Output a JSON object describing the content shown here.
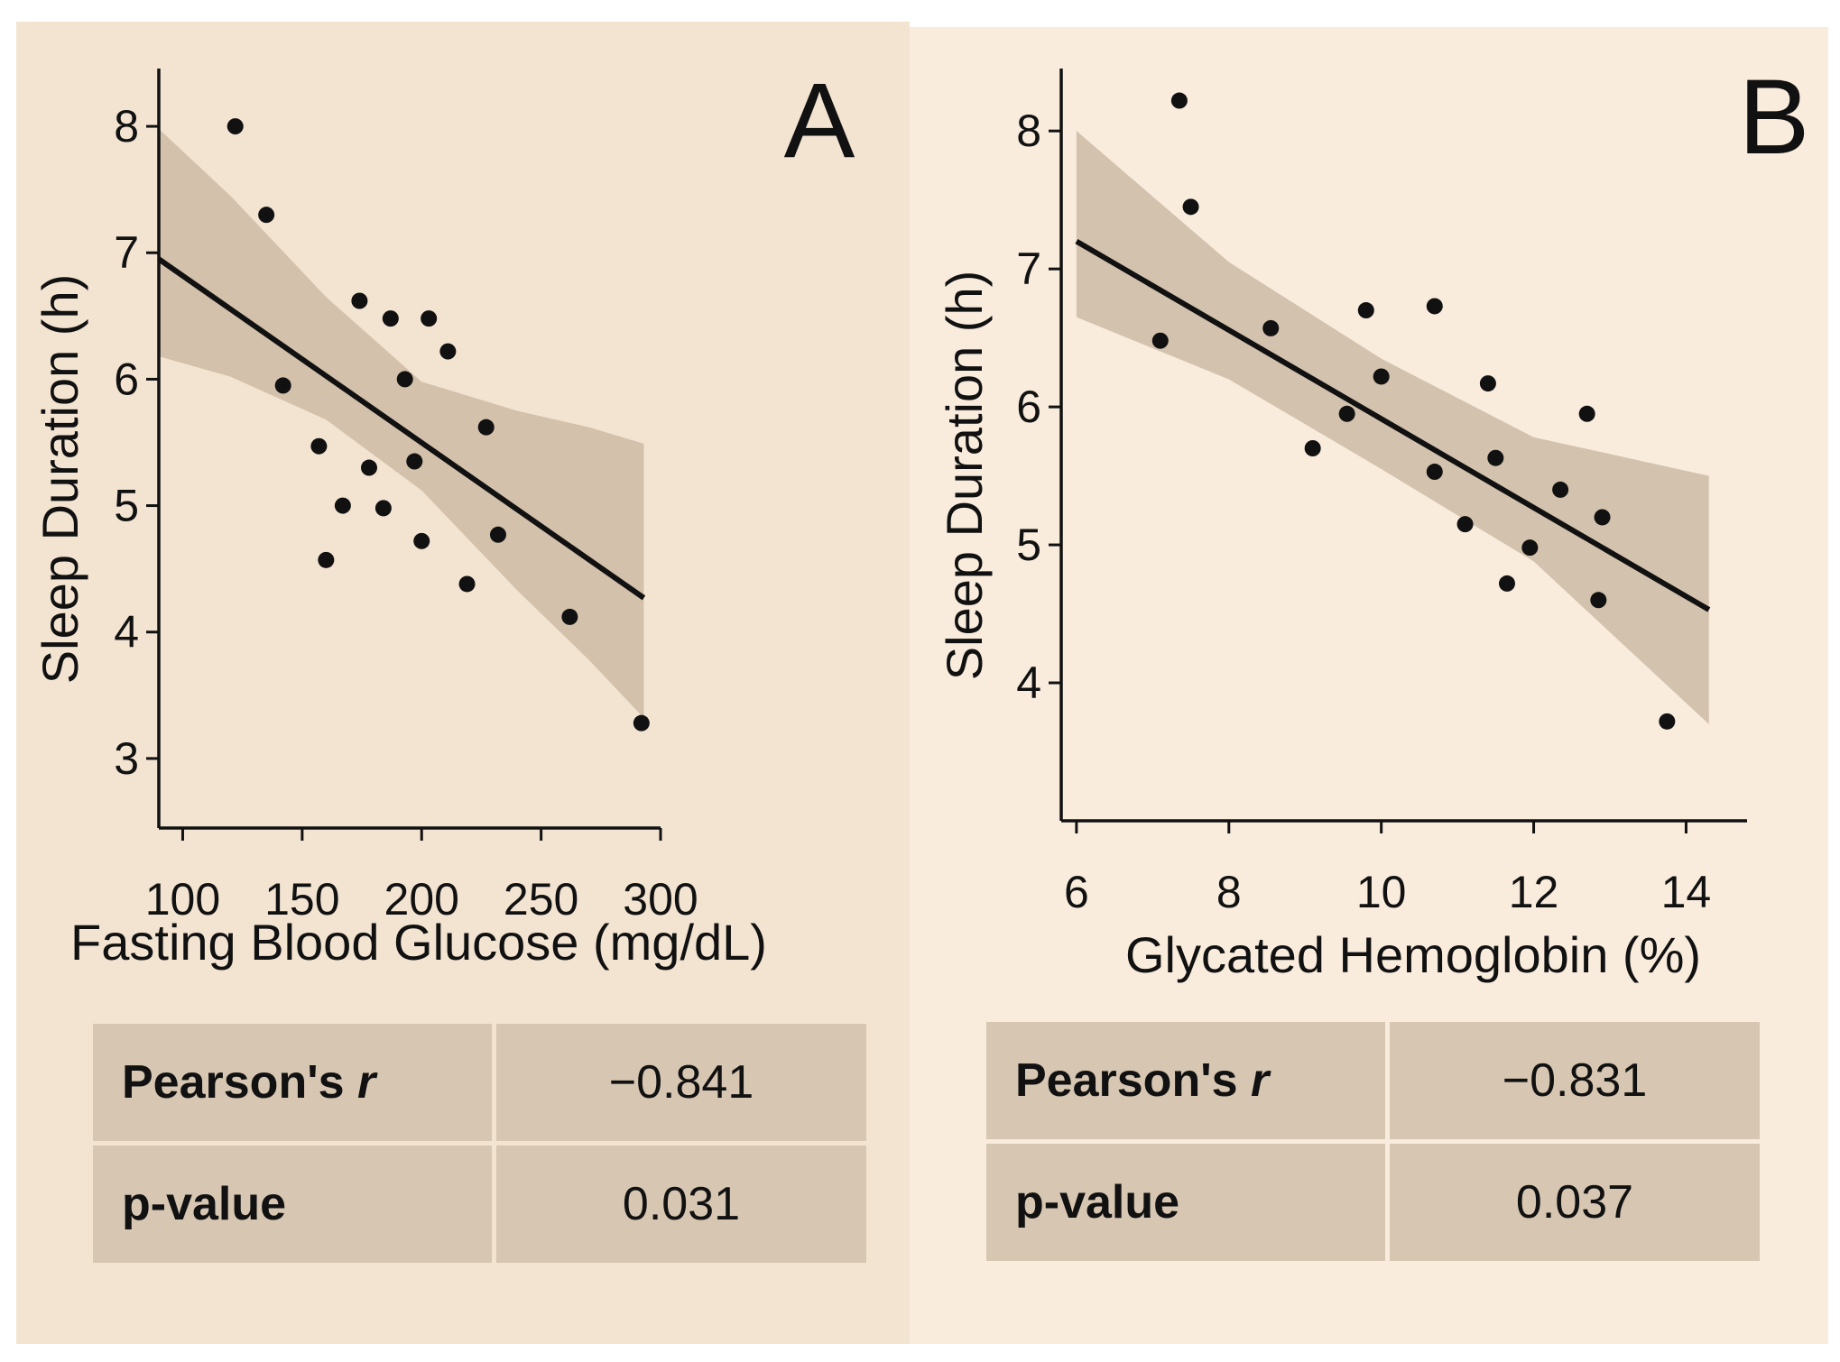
{
  "chart_data": [
    {
      "type": "scatter",
      "panel_label": "A",
      "xlabel": "Fasting Blood Glucose (mg/dL)",
      "ylabel": "Sleep Duration (h)",
      "xlim": [
        90,
        300
      ],
      "ylim": [
        2.45,
        8.4
      ],
      "xticks": [
        100,
        150,
        200,
        250,
        300
      ],
      "yticks": [
        3,
        4,
        5,
        6,
        7,
        8
      ],
      "points": [
        {
          "x": 122,
          "y": 8.0
        },
        {
          "x": 135,
          "y": 7.3
        },
        {
          "x": 142,
          "y": 5.95
        },
        {
          "x": 157,
          "y": 5.47
        },
        {
          "x": 160,
          "y": 4.57
        },
        {
          "x": 167,
          "y": 5.0
        },
        {
          "x": 174,
          "y": 6.62
        },
        {
          "x": 178,
          "y": 5.3
        },
        {
          "x": 184,
          "y": 4.98
        },
        {
          "x": 187,
          "y": 6.48
        },
        {
          "x": 193,
          "y": 6.0
        },
        {
          "x": 197,
          "y": 5.35
        },
        {
          "x": 200,
          "y": 4.72
        },
        {
          "x": 203,
          "y": 6.48
        },
        {
          "x": 211,
          "y": 6.22
        },
        {
          "x": 219,
          "y": 4.38
        },
        {
          "x": 227,
          "y": 5.62
        },
        {
          "x": 232,
          "y": 4.77
        },
        {
          "x": 262,
          "y": 4.12
        },
        {
          "x": 292,
          "y": 3.28
        }
      ],
      "fit": {
        "x": [
          90,
          293
        ],
        "y": [
          6.95,
          4.27
        ]
      },
      "ci_band": {
        "x": [
          90,
          120,
          160,
          200,
          240,
          270,
          293
        ],
        "upper": [
          7.98,
          7.45,
          6.65,
          5.98,
          5.75,
          5.62,
          5.49
        ],
        "lower": [
          6.18,
          6.02,
          5.68,
          5.12,
          4.33,
          3.78,
          3.32
        ]
      },
      "stats": {
        "r_label": "Pearson's",
        "r_symbol": "r",
        "r_value": "−0.841",
        "p_label": "p-value",
        "p_value": "0.031"
      }
    },
    {
      "type": "scatter",
      "panel_label": "B",
      "xlabel": "Glycated Hemoglobin (%)",
      "ylabel": "Sleep Duration (h)",
      "xlim": [
        5.8,
        14.8
      ],
      "ylim": [
        3.0,
        8.4
      ],
      "xticks": [
        6,
        8,
        10,
        12,
        14
      ],
      "yticks": [
        4,
        5,
        6,
        7,
        8
      ],
      "points": [
        {
          "x": 7.1,
          "y": 6.48
        },
        {
          "x": 7.35,
          "y": 8.22
        },
        {
          "x": 7.5,
          "y": 7.45
        },
        {
          "x": 8.55,
          "y": 6.57
        },
        {
          "x": 9.1,
          "y": 5.7
        },
        {
          "x": 9.55,
          "y": 5.95
        },
        {
          "x": 9.8,
          "y": 6.7
        },
        {
          "x": 10.0,
          "y": 6.22
        },
        {
          "x": 10.7,
          "y": 6.73
        },
        {
          "x": 10.7,
          "y": 5.53
        },
        {
          "x": 11.1,
          "y": 5.15
        },
        {
          "x": 11.4,
          "y": 6.17
        },
        {
          "x": 11.5,
          "y": 5.63
        },
        {
          "x": 11.65,
          "y": 4.72
        },
        {
          "x": 11.95,
          "y": 4.98
        },
        {
          "x": 12.35,
          "y": 5.4
        },
        {
          "x": 12.7,
          "y": 5.95
        },
        {
          "x": 12.85,
          "y": 4.6
        },
        {
          "x": 12.9,
          "y": 5.2
        },
        {
          "x": 13.75,
          "y": 3.72
        }
      ],
      "fit": {
        "x": [
          6.0,
          14.3
        ],
        "y": [
          7.2,
          4.53
        ]
      },
      "ci_band": {
        "x": [
          6.0,
          8.0,
          10.0,
          12.0,
          14.3
        ],
        "upper": [
          8.0,
          7.05,
          6.35,
          5.78,
          5.5
        ],
        "lower": [
          6.65,
          6.2,
          5.55,
          4.88,
          3.7
        ]
      },
      "stats": {
        "r_label": "Pearson's",
        "r_symbol": "r",
        "r_value": "−0.831",
        "p_label": "p-value",
        "p_value": "0.037"
      }
    }
  ]
}
